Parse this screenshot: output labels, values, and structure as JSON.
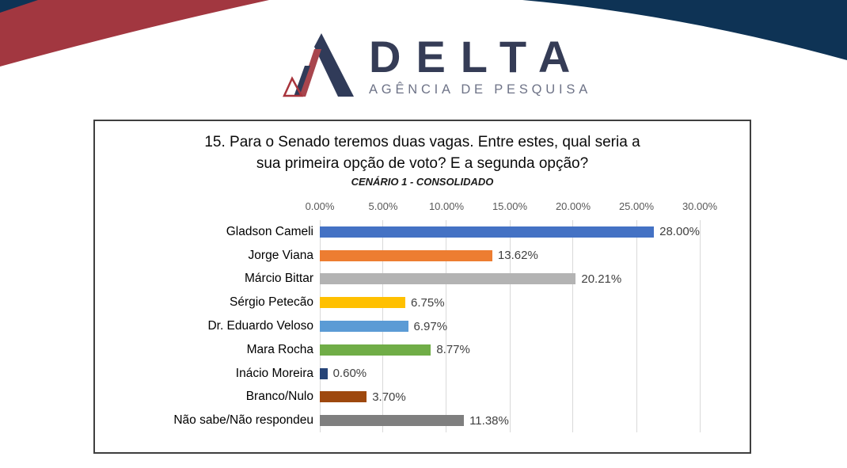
{
  "header": {
    "brand": "DELTA",
    "tagline": "AGÊNCIA DE PESQUISA",
    "colors": {
      "corner_navy": "#0E3355",
      "swoosh_red": "#A23740",
      "logo_navy": "#303B59",
      "logo_red": "#A8454D",
      "brand_text": "#353C56",
      "tagline_text": "#6E7387"
    }
  },
  "chart_data": {
    "type": "bar",
    "orientation": "horizontal",
    "title": "15. Para o Senado teremos duas vagas. Entre estes, qual seria a sua primeira opção de voto? E a segunda opção?",
    "title_lines": [
      "15. Para o Senado teremos duas vagas. Entre estes, qual seria a",
      "sua primeira opção de voto? E a segunda opção?"
    ],
    "subtitle": "CENÁRIO 1 - CONSOLIDADO",
    "categories": [
      "Gladson Cameli",
      "Jorge Viana",
      "Márcio Bittar",
      "Sérgio Petecão",
      "Dr. Eduardo Veloso",
      "Mara Rocha",
      "Inácio Moreira",
      "Branco/Nulo",
      "Não sabe/Não respondeu"
    ],
    "values": [
      28.0,
      13.62,
      20.21,
      6.75,
      6.97,
      8.77,
      0.6,
      3.7,
      11.38
    ],
    "value_labels": [
      "28.00%",
      "13.62%",
      "20.21%",
      "6.75%",
      "6.97%",
      "8.77%",
      "0.60%",
      "3.70%",
      "11.38%"
    ],
    "bar_colors": [
      "#4472C4",
      "#ED7D31",
      "#B3B3B3",
      "#FFC000",
      "#5B9BD5",
      "#70AD47",
      "#264478",
      "#9E480E",
      "#7F7F7F"
    ],
    "x_axis": {
      "ticks": [
        "0.00%",
        "5.00%",
        "10.00%",
        "15.00%",
        "20.00%",
        "25.00%",
        "30.00%"
      ],
      "min": 0,
      "max": 30
    },
    "grid": true,
    "legend": false,
    "gridline_color": "#D9D9D9"
  }
}
